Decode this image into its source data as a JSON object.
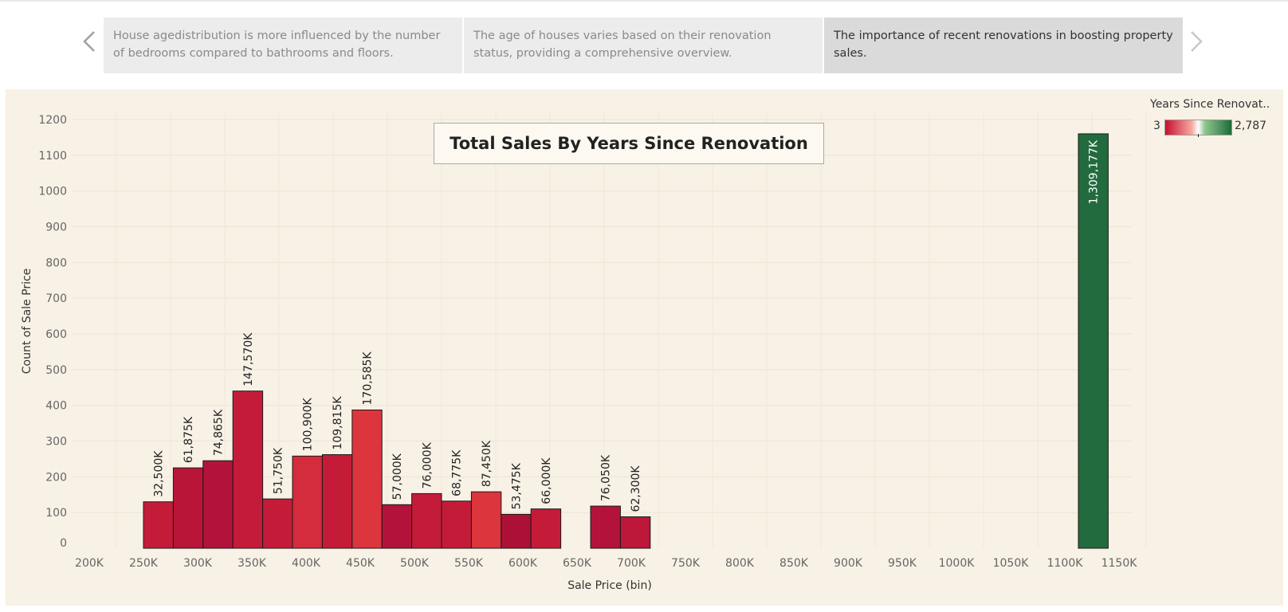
{
  "story": {
    "points": [
      {
        "text": "House agedistribution is more influenced by the number of bedrooms compared to bathrooms and floors."
      },
      {
        "text": "The age of houses varies based on their renovation status, providing a comprehensive overview."
      },
      {
        "text": "The importance of recent renovations in boosting property sales."
      }
    ],
    "active_index": 2,
    "prev_icon": "chevron-left-icon",
    "next_icon": "chevron-right-icon"
  },
  "legend": {
    "title": "Years Since Renovat..",
    "min_label": "3",
    "max_label": "2,787",
    "colors": [
      "#c8102e",
      "#ffffff",
      "#1e6b3a"
    ]
  },
  "chart_data": {
    "type": "bar",
    "title": "Total Sales By Years Since Renovation",
    "xlabel": "Sale Price (bin)",
    "ylabel": "Count of Sale Price",
    "x_ticks": [
      "200K",
      "250K",
      "300K",
      "350K",
      "400K",
      "450K",
      "500K",
      "550K",
      "600K",
      "650K",
      "700K",
      "750K",
      "800K",
      "850K",
      "900K",
      "950K",
      "1000K",
      "1050K",
      "1100K",
      "1150K"
    ],
    "y_ticks": [
      0,
      100,
      200,
      300,
      400,
      500,
      600,
      700,
      800,
      900,
      1000,
      1100,
      1200
    ],
    "ylim": [
      0,
      1200
    ],
    "xlim": [
      200000,
      1150000
    ],
    "bin_width": 27500,
    "bars": [
      {
        "bin_start": 250000,
        "count": 130,
        "label": "32,500K",
        "color": "#c41c38"
      },
      {
        "bin_start": 277500,
        "count": 225,
        "label": "61,875K",
        "color": "#b81538"
      },
      {
        "bin_start": 305000,
        "count": 245,
        "label": "74,865K",
        "color": "#b3133a"
      },
      {
        "bin_start": 332500,
        "count": 440,
        "label": "147,570K",
        "color": "#c41c38"
      },
      {
        "bin_start": 360000,
        "count": 138,
        "label": "51,750K",
        "color": "#c41c38"
      },
      {
        "bin_start": 387500,
        "count": 258,
        "label": "100,900K",
        "color": "#d42c3c"
      },
      {
        "bin_start": 415000,
        "count": 262,
        "label": "109,815K",
        "color": "#c41c38"
      },
      {
        "bin_start": 442500,
        "count": 387,
        "label": "170,585K",
        "color": "#dc353d"
      },
      {
        "bin_start": 470000,
        "count": 122,
        "label": "57,000K",
        "color": "#b3133a"
      },
      {
        "bin_start": 497500,
        "count": 153,
        "label": "76,000K",
        "color": "#c41c38"
      },
      {
        "bin_start": 525000,
        "count": 132,
        "label": "68,775K",
        "color": "#c41c38"
      },
      {
        "bin_start": 552500,
        "count": 158,
        "label": "87,450K",
        "color": "#dc353d"
      },
      {
        "bin_start": 580000,
        "count": 95,
        "label": "53,475K",
        "color": "#ad1037"
      },
      {
        "bin_start": 607500,
        "count": 110,
        "label": "66,000K",
        "color": "#c41c38"
      },
      {
        "bin_start": 662500,
        "count": 118,
        "label": "76,050K",
        "color": "#b3133a"
      },
      {
        "bin_start": 690000,
        "count": 88,
        "label": "62,300K",
        "color": "#bd1739"
      },
      {
        "bin_start": 1112500,
        "count": 1160,
        "label": "1,309,177K",
        "color": "#226b3e"
      }
    ],
    "grid": true,
    "legend_position": "top-right"
  }
}
